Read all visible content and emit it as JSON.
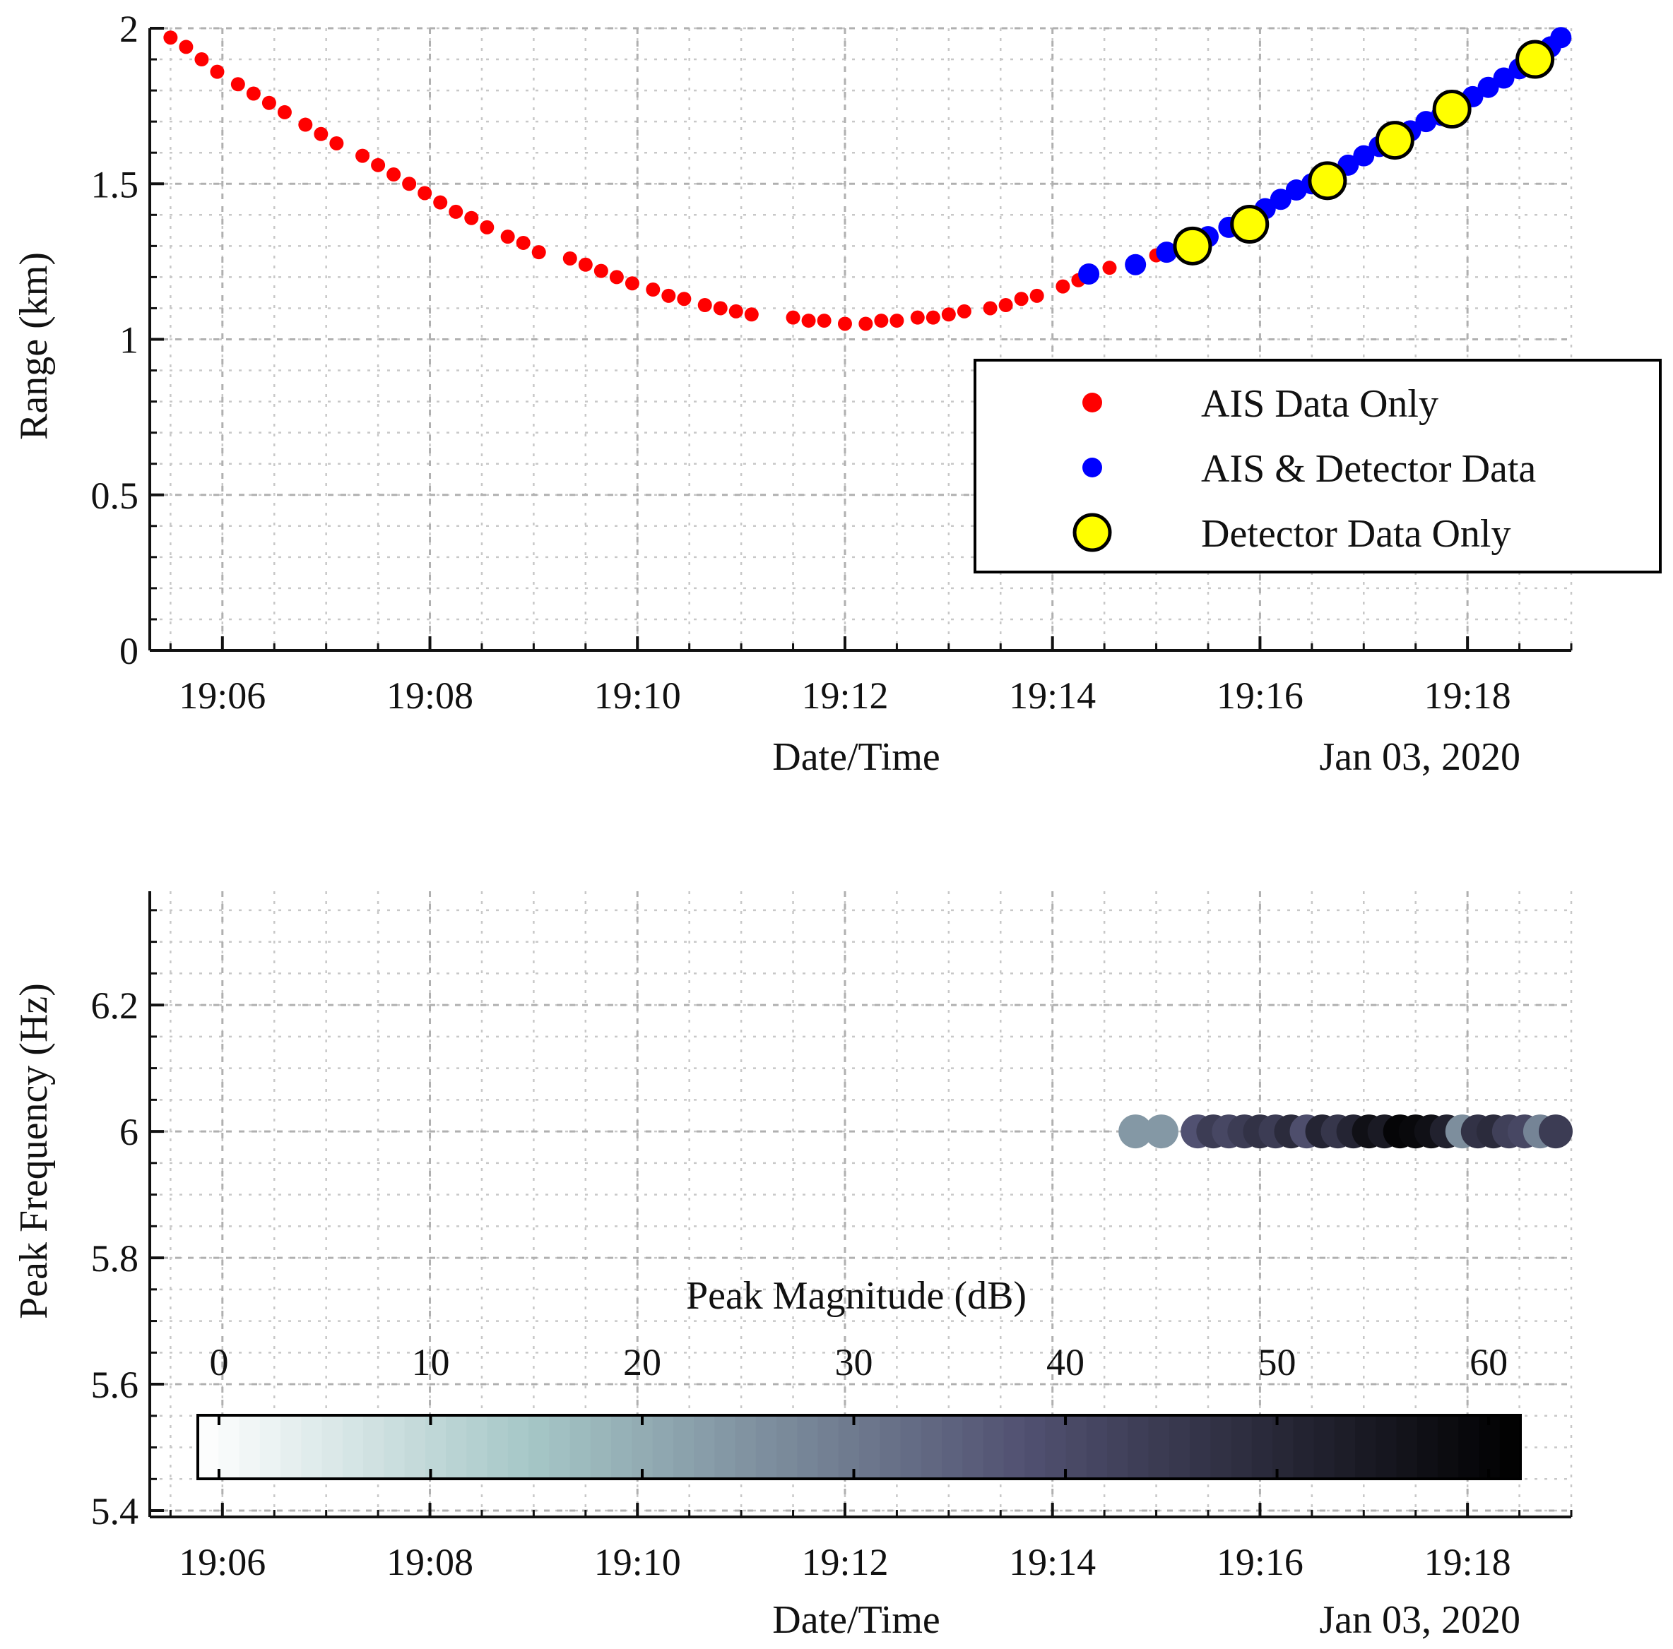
{
  "chart_data": [
    {
      "type": "scatter",
      "title": "",
      "xlabel": "Date/Time",
      "date_label": "Jan 03, 2020",
      "ylabel": "Range (km)",
      "xlim": [
        5.3,
        19.0
      ],
      "x_unit": "minutes after 19:00",
      "ylim": [
        0,
        2
      ],
      "yticks": [
        0,
        0.5,
        1,
        1.5,
        2
      ],
      "ytick_labels": [
        "0",
        "0.5",
        "1",
        "1.5",
        "2"
      ],
      "xticks": [
        6,
        8,
        10,
        12,
        14,
        16,
        18
      ],
      "xtick_labels": [
        "19:06",
        "19:08",
        "19:10",
        "19:12",
        "19:14",
        "19:16",
        "19:18"
      ],
      "grid": true,
      "legend_position": "right-center",
      "legend": [
        "AIS Data Only",
        "AIS & Detector Data",
        "Detector Data Only"
      ],
      "series": [
        {
          "name": "AIS Data Only",
          "color": "#ff0000",
          "x": [
            5.5,
            5.65,
            5.8,
            5.95,
            6.15,
            6.3,
            6.45,
            6.6,
            6.8,
            6.95,
            7.1,
            7.35,
            7.5,
            7.65,
            7.8,
            7.95,
            8.1,
            8.25,
            8.4,
            8.55,
            8.75,
            8.9,
            9.05,
            9.35,
            9.5,
            9.65,
            9.8,
            9.95,
            10.15,
            10.3,
            10.45,
            10.65,
            10.8,
            10.95,
            11.1,
            11.5,
            11.65,
            11.8,
            12.0,
            12.2,
            12.35,
            12.5,
            12.7,
            12.85,
            13.0,
            13.15,
            13.4,
            13.55,
            13.7,
            13.85,
            14.1,
            14.25,
            14.55,
            15.0
          ],
          "y": [
            1.97,
            1.94,
            1.9,
            1.86,
            1.82,
            1.79,
            1.76,
            1.73,
            1.69,
            1.66,
            1.63,
            1.59,
            1.56,
            1.53,
            1.5,
            1.47,
            1.44,
            1.41,
            1.39,
            1.36,
            1.33,
            1.31,
            1.28,
            1.26,
            1.24,
            1.22,
            1.2,
            1.18,
            1.16,
            1.14,
            1.13,
            1.11,
            1.1,
            1.09,
            1.08,
            1.07,
            1.06,
            1.06,
            1.05,
            1.05,
            1.06,
            1.06,
            1.07,
            1.07,
            1.08,
            1.09,
            1.1,
            1.11,
            1.13,
            1.14,
            1.17,
            1.19,
            1.23,
            1.27
          ]
        },
        {
          "name": "AIS & Detector Data",
          "color": "#0000ff",
          "x": [
            14.35,
            14.8,
            15.1,
            15.3,
            15.5,
            15.7,
            15.9,
            16.05,
            16.2,
            16.35,
            16.5,
            16.7,
            16.85,
            17.0,
            17.15,
            17.3,
            17.45,
            17.6,
            17.75,
            17.9,
            18.05,
            18.2,
            18.35,
            18.5,
            18.65,
            18.8,
            18.9
          ],
          "y": [
            1.21,
            1.24,
            1.28,
            1.31,
            1.33,
            1.36,
            1.39,
            1.42,
            1.45,
            1.48,
            1.5,
            1.53,
            1.56,
            1.59,
            1.62,
            1.64,
            1.67,
            1.7,
            1.72,
            1.75,
            1.78,
            1.81,
            1.84,
            1.87,
            1.91,
            1.94,
            1.97
          ]
        },
        {
          "name": "Detector Data Only",
          "color": "#ffff00",
          "x": [
            15.35,
            15.9,
            16.65,
            17.3,
            17.85,
            18.65
          ],
          "y": [
            1.3,
            1.37,
            1.51,
            1.64,
            1.74,
            1.9
          ]
        }
      ]
    },
    {
      "type": "scatter",
      "title": "",
      "xlabel": "Date/Time",
      "date_label": "Jan 03, 2020",
      "ylabel": "Peak Frequency (Hz)",
      "xlim": [
        5.3,
        19.0
      ],
      "x_unit": "minutes after 19:00",
      "ylim": [
        5.39,
        6.38
      ],
      "yticks": [
        5.4,
        5.6,
        5.8,
        6.0,
        6.2
      ],
      "ytick_labels": [
        "5.4",
        "5.6",
        "5.8",
        "6",
        "6.2"
      ],
      "xticks": [
        6,
        8,
        10,
        12,
        14,
        16,
        18
      ],
      "xtick_labels": [
        "19:06",
        "19:08",
        "19:10",
        "19:12",
        "19:14",
        "19:16",
        "19:18"
      ],
      "grid": true,
      "colorbar": {
        "label": "Peak Magnitude (dB)",
        "range": [
          -1,
          61.5
        ],
        "ticks": [
          0,
          10,
          20,
          30,
          40,
          50,
          60
        ],
        "tick_labels": [
          "0",
          "10",
          "20",
          "30",
          "40",
          "50",
          "60"
        ],
        "orientation": "horizontal",
        "colormap": "bone"
      },
      "series": [
        {
          "name": "Peak Frequency",
          "x": [
            14.8,
            15.05,
            15.4,
            15.55,
            15.7,
            15.85,
            16.0,
            16.15,
            16.3,
            16.45,
            16.6,
            16.75,
            16.9,
            17.05,
            17.2,
            17.35,
            17.5,
            17.65,
            17.8,
            17.95,
            18.1,
            18.25,
            18.4,
            18.55,
            18.7,
            18.85
          ],
          "y": [
            6,
            6,
            6,
            6,
            6,
            6,
            6,
            6,
            6,
            6,
            6,
            6,
            6,
            6,
            6,
            6,
            6,
            6,
            6,
            6,
            6,
            6,
            6,
            6,
            6,
            6
          ],
          "magnitude": [
            24,
            24,
            38,
            44,
            41,
            44,
            47,
            44,
            49,
            39,
            51,
            46,
            51,
            57,
            54,
            60,
            59,
            57,
            52,
            26,
            47,
            49,
            43,
            41,
            28,
            44
          ]
        }
      ]
    }
  ]
}
